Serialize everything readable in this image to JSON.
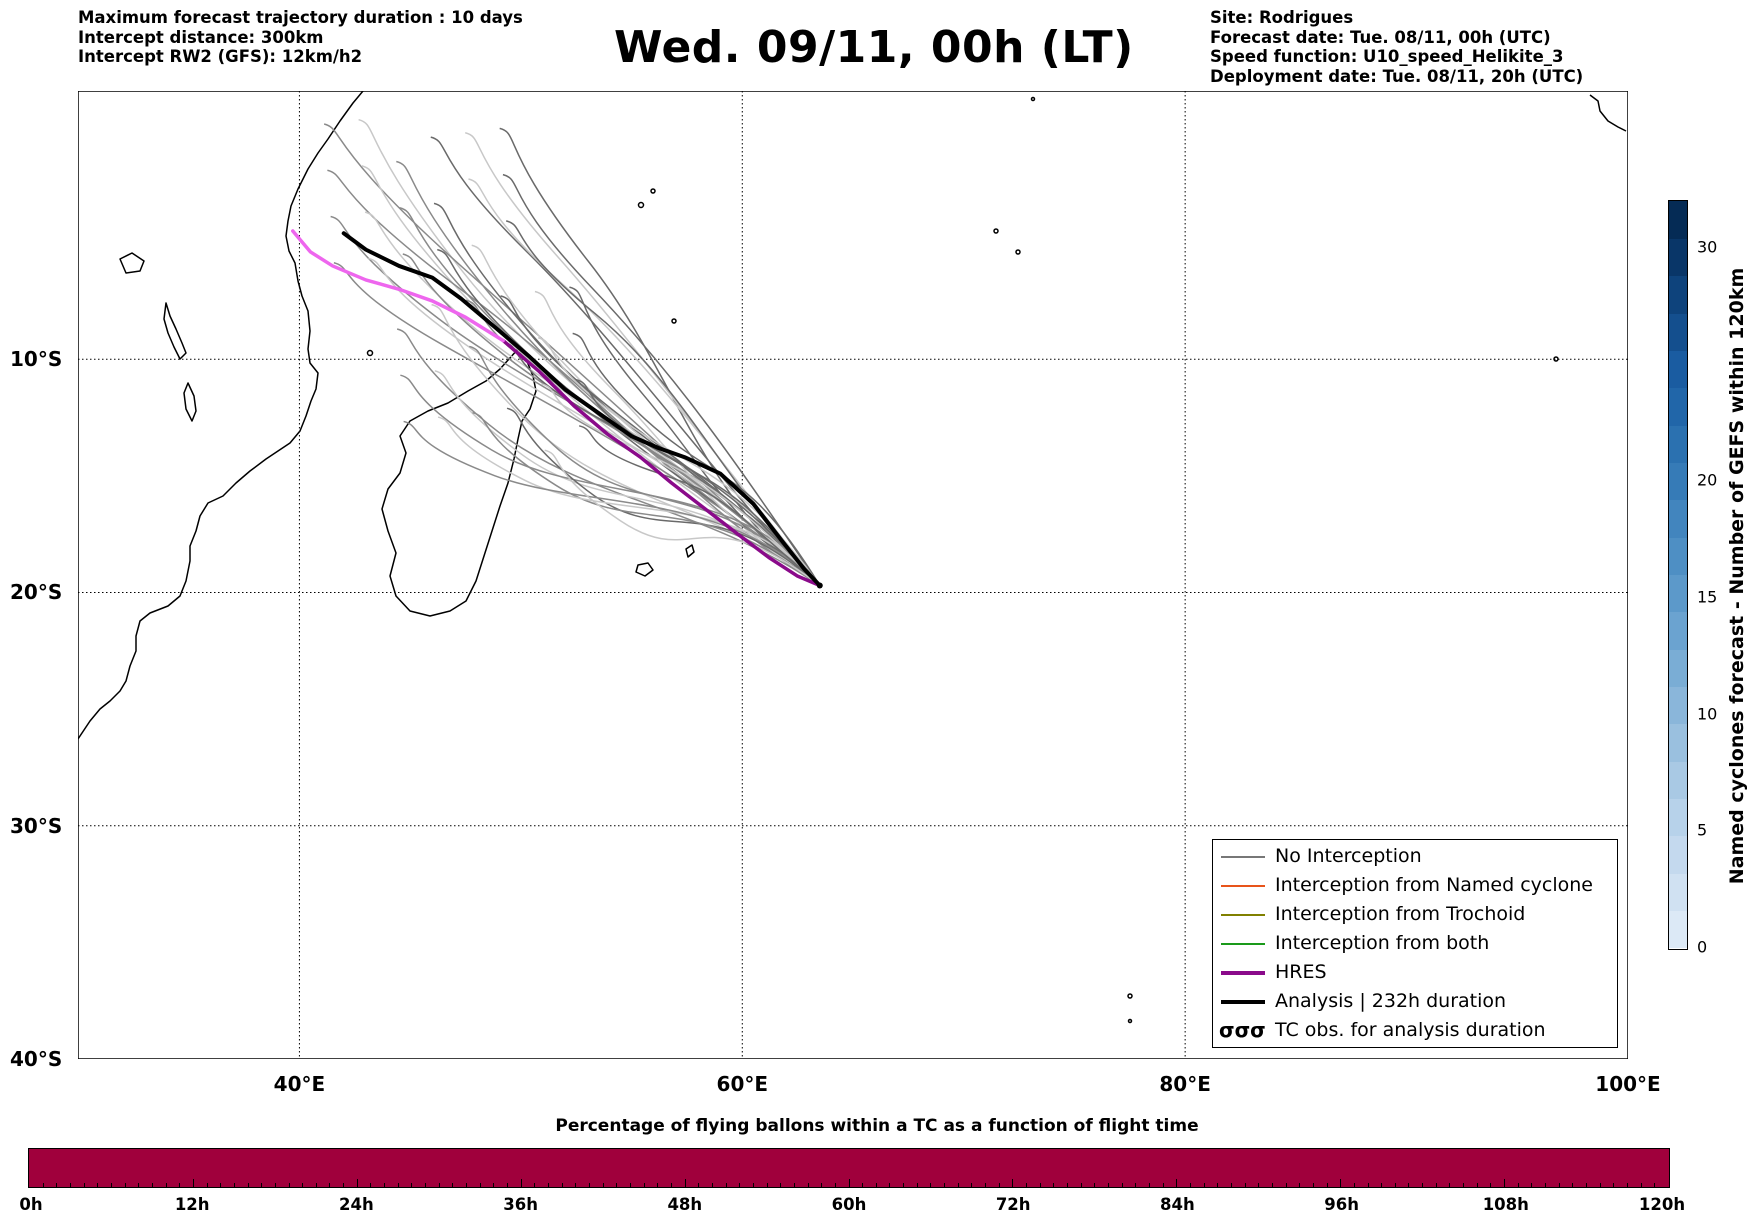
{
  "header": {
    "left_lines": [
      "Maximum forecast trajectory duration : 10 days",
      "Intercept distance: 300km",
      "Intercept RW2 (GFS):  12km/h2"
    ],
    "title": "Wed. 09/11, 00h (LT)",
    "right_lines": [
      "Site: Rodrigues",
      "Forecast date: Tue. 08/11, 00h (UTC)",
      "Speed function: U10_speed_Helikite_3",
      "Deployment date: Tue. 08/11, 20h (UTC)"
    ]
  },
  "map": {
    "lon_range": [
      30,
      100
    ],
    "lat_range": [
      -40,
      1.5
    ],
    "lat_labels": [
      {
        "lat": -10,
        "text": "10°S"
      },
      {
        "lat": -20,
        "text": "20°S"
      },
      {
        "lat": -30,
        "text": "30°S"
      },
      {
        "lat": -40,
        "text": "40°S"
      }
    ],
    "lon_labels": [
      {
        "lon": 40,
        "text": "40°E"
      },
      {
        "lon": 60,
        "text": "60°E"
      },
      {
        "lon": 80,
        "text": "80°E"
      },
      {
        "lon": 100,
        "text": "100°E"
      }
    ],
    "grid": true,
    "release_site": {
      "lon": 63.5,
      "lat": -19.7
    },
    "hres_track": [
      [
        63.5,
        -19.7
      ],
      [
        62.5,
        -19.3
      ],
      [
        61.2,
        -18.5
      ],
      [
        59.8,
        -17.5
      ],
      [
        58.3,
        -16.4
      ],
      [
        56.8,
        -15.3
      ],
      [
        55.4,
        -14.2
      ],
      [
        53.9,
        -13.2
      ],
      [
        52.4,
        -12.0
      ],
      [
        50.8,
        -10.5
      ],
      [
        49.2,
        -9.2
      ],
      [
        47.5,
        -8.2
      ],
      [
        46.0,
        -7.5
      ],
      [
        44.5,
        -7.0
      ],
      [
        43.0,
        -6.6
      ],
      [
        41.5,
        -6.0
      ],
      [
        40.5,
        -5.4
      ],
      [
        39.7,
        -4.5
      ]
    ],
    "analysis_track": [
      [
        63.5,
        -19.7
      ],
      [
        62.8,
        -19.0
      ],
      [
        61.8,
        -17.8
      ],
      [
        60.5,
        -16.2
      ],
      [
        59.0,
        -14.9
      ],
      [
        57.4,
        -14.2
      ],
      [
        56.2,
        -13.8
      ],
      [
        55.0,
        -13.3
      ],
      [
        53.5,
        -12.3
      ],
      [
        52.0,
        -11.3
      ],
      [
        50.4,
        -9.9
      ],
      [
        48.8,
        -8.6
      ],
      [
        47.3,
        -7.4
      ],
      [
        46.0,
        -6.5
      ],
      [
        44.5,
        -6.0
      ],
      [
        43.0,
        -5.3
      ],
      [
        42.0,
        -4.6
      ]
    ]
  },
  "legend": {
    "items": [
      {
        "label": "No Interception",
        "color": "#777777",
        "style": "thin"
      },
      {
        "label": "Interception from Named cyclone",
        "color": "#e8541a",
        "style": "thin"
      },
      {
        "label": "Interception from Trochoid",
        "color": "#808000",
        "style": "thin"
      },
      {
        "label": "Interception from both",
        "color": "#1a9a1a",
        "style": "thin"
      },
      {
        "label": "HRES",
        "color": "#8a0a8a",
        "style": "thick"
      },
      {
        "label": "Analysis | 232h duration",
        "color": "#000000",
        "style": "thick"
      },
      {
        "label": "TC obs. for analysis duration",
        "color": "#000000",
        "style": "symbol",
        "symbol": "σσσ"
      }
    ]
  },
  "colorbar": {
    "label": "Named cyclones forecast - Number of GEFS within 120km",
    "range": [
      0,
      32
    ],
    "ticks": [
      0,
      5,
      10,
      15,
      20,
      30
    ],
    "tick_labels": [
      "0",
      "5",
      "10",
      "15",
      "20",
      "30"
    ],
    "colors": [
      "#dce9f6",
      "#d0e1f2",
      "#c4d9ee",
      "#b7d2ea",
      "#a9c9e4",
      "#9ac0df",
      "#8ab6da",
      "#7aadd5",
      "#6ba3d0",
      "#5c99ca",
      "#4e8fc4",
      "#4285be",
      "#367bb7",
      "#2b71b0",
      "#2166a9",
      "#1a5ca1",
      "#144f8e",
      "#0e437c",
      "#093668",
      "#052b55"
    ]
  },
  "bottom_bar": {
    "title": "Percentage of flying ballons within a TC as a function of flight time",
    "color": "#a0003c",
    "ticks": [
      "0h",
      "12h",
      "24h",
      "36h",
      "48h",
      "60h",
      "72h",
      "84h",
      "96h",
      "108h",
      "120h"
    ]
  }
}
